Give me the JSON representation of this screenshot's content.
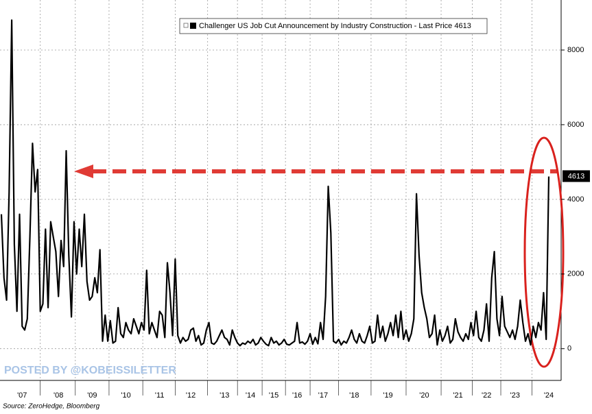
{
  "chart_data": {
    "type": "line",
    "series": [
      {
        "name": "Challenger US Job Cut Announcement by Industry Construction - Last Price 4613",
        "color": "#000000",
        "values": [
          3600,
          1900,
          1300,
          4200,
          8800,
          2800,
          1000,
          3600,
          600,
          500,
          800,
          3000,
          5500,
          4200,
          4800,
          1000,
          1200,
          3200,
          1100,
          3400,
          3000,
          2600,
          1400,
          2900,
          2200,
          5300,
          2500,
          850,
          3400,
          2000,
          3200,
          2200,
          3600,
          1800,
          1300,
          1400,
          1900,
          1500,
          2650,
          200,
          900,
          200,
          750,
          150,
          200,
          1100,
          400,
          300,
          700,
          500,
          400,
          800,
          600,
          400,
          700,
          500,
          2100,
          400,
          700,
          500,
          300,
          1000,
          900,
          300,
          2300,
          1500,
          350,
          2400,
          350,
          150,
          300,
          200,
          250,
          500,
          550,
          200,
          350,
          100,
          150,
          500,
          700,
          150,
          120,
          200,
          350,
          500,
          300,
          250,
          100,
          500,
          300,
          150,
          80,
          150,
          120,
          200,
          150,
          250,
          100,
          150,
          300,
          200,
          120,
          80,
          300,
          150,
          200,
          100,
          150,
          250,
          120,
          100,
          150,
          200,
          700,
          150,
          180,
          120,
          200,
          400,
          120,
          300,
          130,
          700,
          250,
          1400,
          4350,
          3100,
          200,
          150,
          250,
          100,
          200,
          150,
          300,
          500,
          250,
          150,
          400,
          200,
          150,
          350,
          600,
          150,
          200,
          900,
          300,
          600,
          200,
          400,
          700,
          350,
          900,
          300,
          1000,
          250,
          500,
          200,
          400,
          800,
          4150,
          2500,
          1500,
          1100,
          800,
          300,
          400,
          900,
          100,
          500,
          200,
          350,
          600,
          150,
          250,
          800,
          450,
          300,
          200,
          400,
          250,
          700,
          350,
          1000,
          300,
          200,
          500,
          1200,
          200,
          1900,
          2600,
          800,
          350,
          1400,
          600,
          450,
          300,
          500,
          250,
          600,
          1300,
          700,
          200,
          400,
          100,
          600,
          300,
          700,
          500,
          1500,
          250,
          4613
        ]
      }
    ],
    "categories": [
      null,
      null,
      null,
      null,
      null,
      null,
      null,
      null,
      "'07",
      null,
      null,
      null,
      null,
      null,
      null,
      null,
      null,
      null,
      null,
      null,
      null,
      null,
      "'08",
      null,
      null,
      null,
      null,
      null,
      null,
      null,
      null,
      null,
      null,
      null,
      null,
      "'09",
      null,
      null,
      null,
      null,
      null,
      null,
      null,
      null,
      null,
      null,
      null,
      null,
      "'10",
      null,
      null,
      null,
      null,
      null,
      null,
      null,
      null,
      null,
      null,
      null,
      null,
      "'11",
      null,
      null,
      null,
      null,
      null,
      null,
      null,
      null,
      null,
      null,
      null,
      "'12",
      null,
      null,
      null,
      null,
      null,
      null,
      null,
      null,
      null,
      null,
      null,
      null,
      "'13",
      null,
      null,
      null,
      null,
      null,
      null,
      null,
      null,
      null,
      "'14",
      null,
      null,
      null,
      null,
      null,
      null,
      null,
      null,
      "'15",
      null,
      null,
      null,
      null,
      null,
      null,
      null,
      null,
      "'16",
      null,
      null,
      null,
      null,
      null,
      null,
      null,
      null,
      null,
      "'17",
      null,
      null,
      null,
      null,
      null,
      null,
      null,
      null,
      null,
      null,
      null,
      "'18",
      null,
      null,
      null,
      null,
      null,
      null,
      null,
      null,
      null,
      null,
      null,
      null,
      "'19",
      null,
      null,
      null,
      null,
      null,
      null,
      null,
      null,
      null,
      null,
      null,
      null,
      null,
      "'20",
      null,
      null,
      null,
      null,
      null,
      null,
      null,
      null,
      null,
      null,
      null,
      null,
      "'21",
      null,
      null,
      null,
      null,
      null,
      null,
      null,
      null,
      null,
      null,
      "'22",
      null,
      null,
      null,
      null,
      null,
      null,
      null,
      null,
      null,
      null,
      "'23",
      null,
      null,
      null,
      null,
      null,
      null,
      null,
      null,
      null,
      null,
      null,
      null,
      "'24"
    ],
    "ylim": [
      -850,
      9340
    ],
    "yticks": [
      0,
      2000,
      4000,
      6000,
      8000
    ],
    "grid": true,
    "watermark": "POSTED BY @KOBEISSILETTER",
    "source": "Source: ZeroHedge, Bloomberg"
  }
}
